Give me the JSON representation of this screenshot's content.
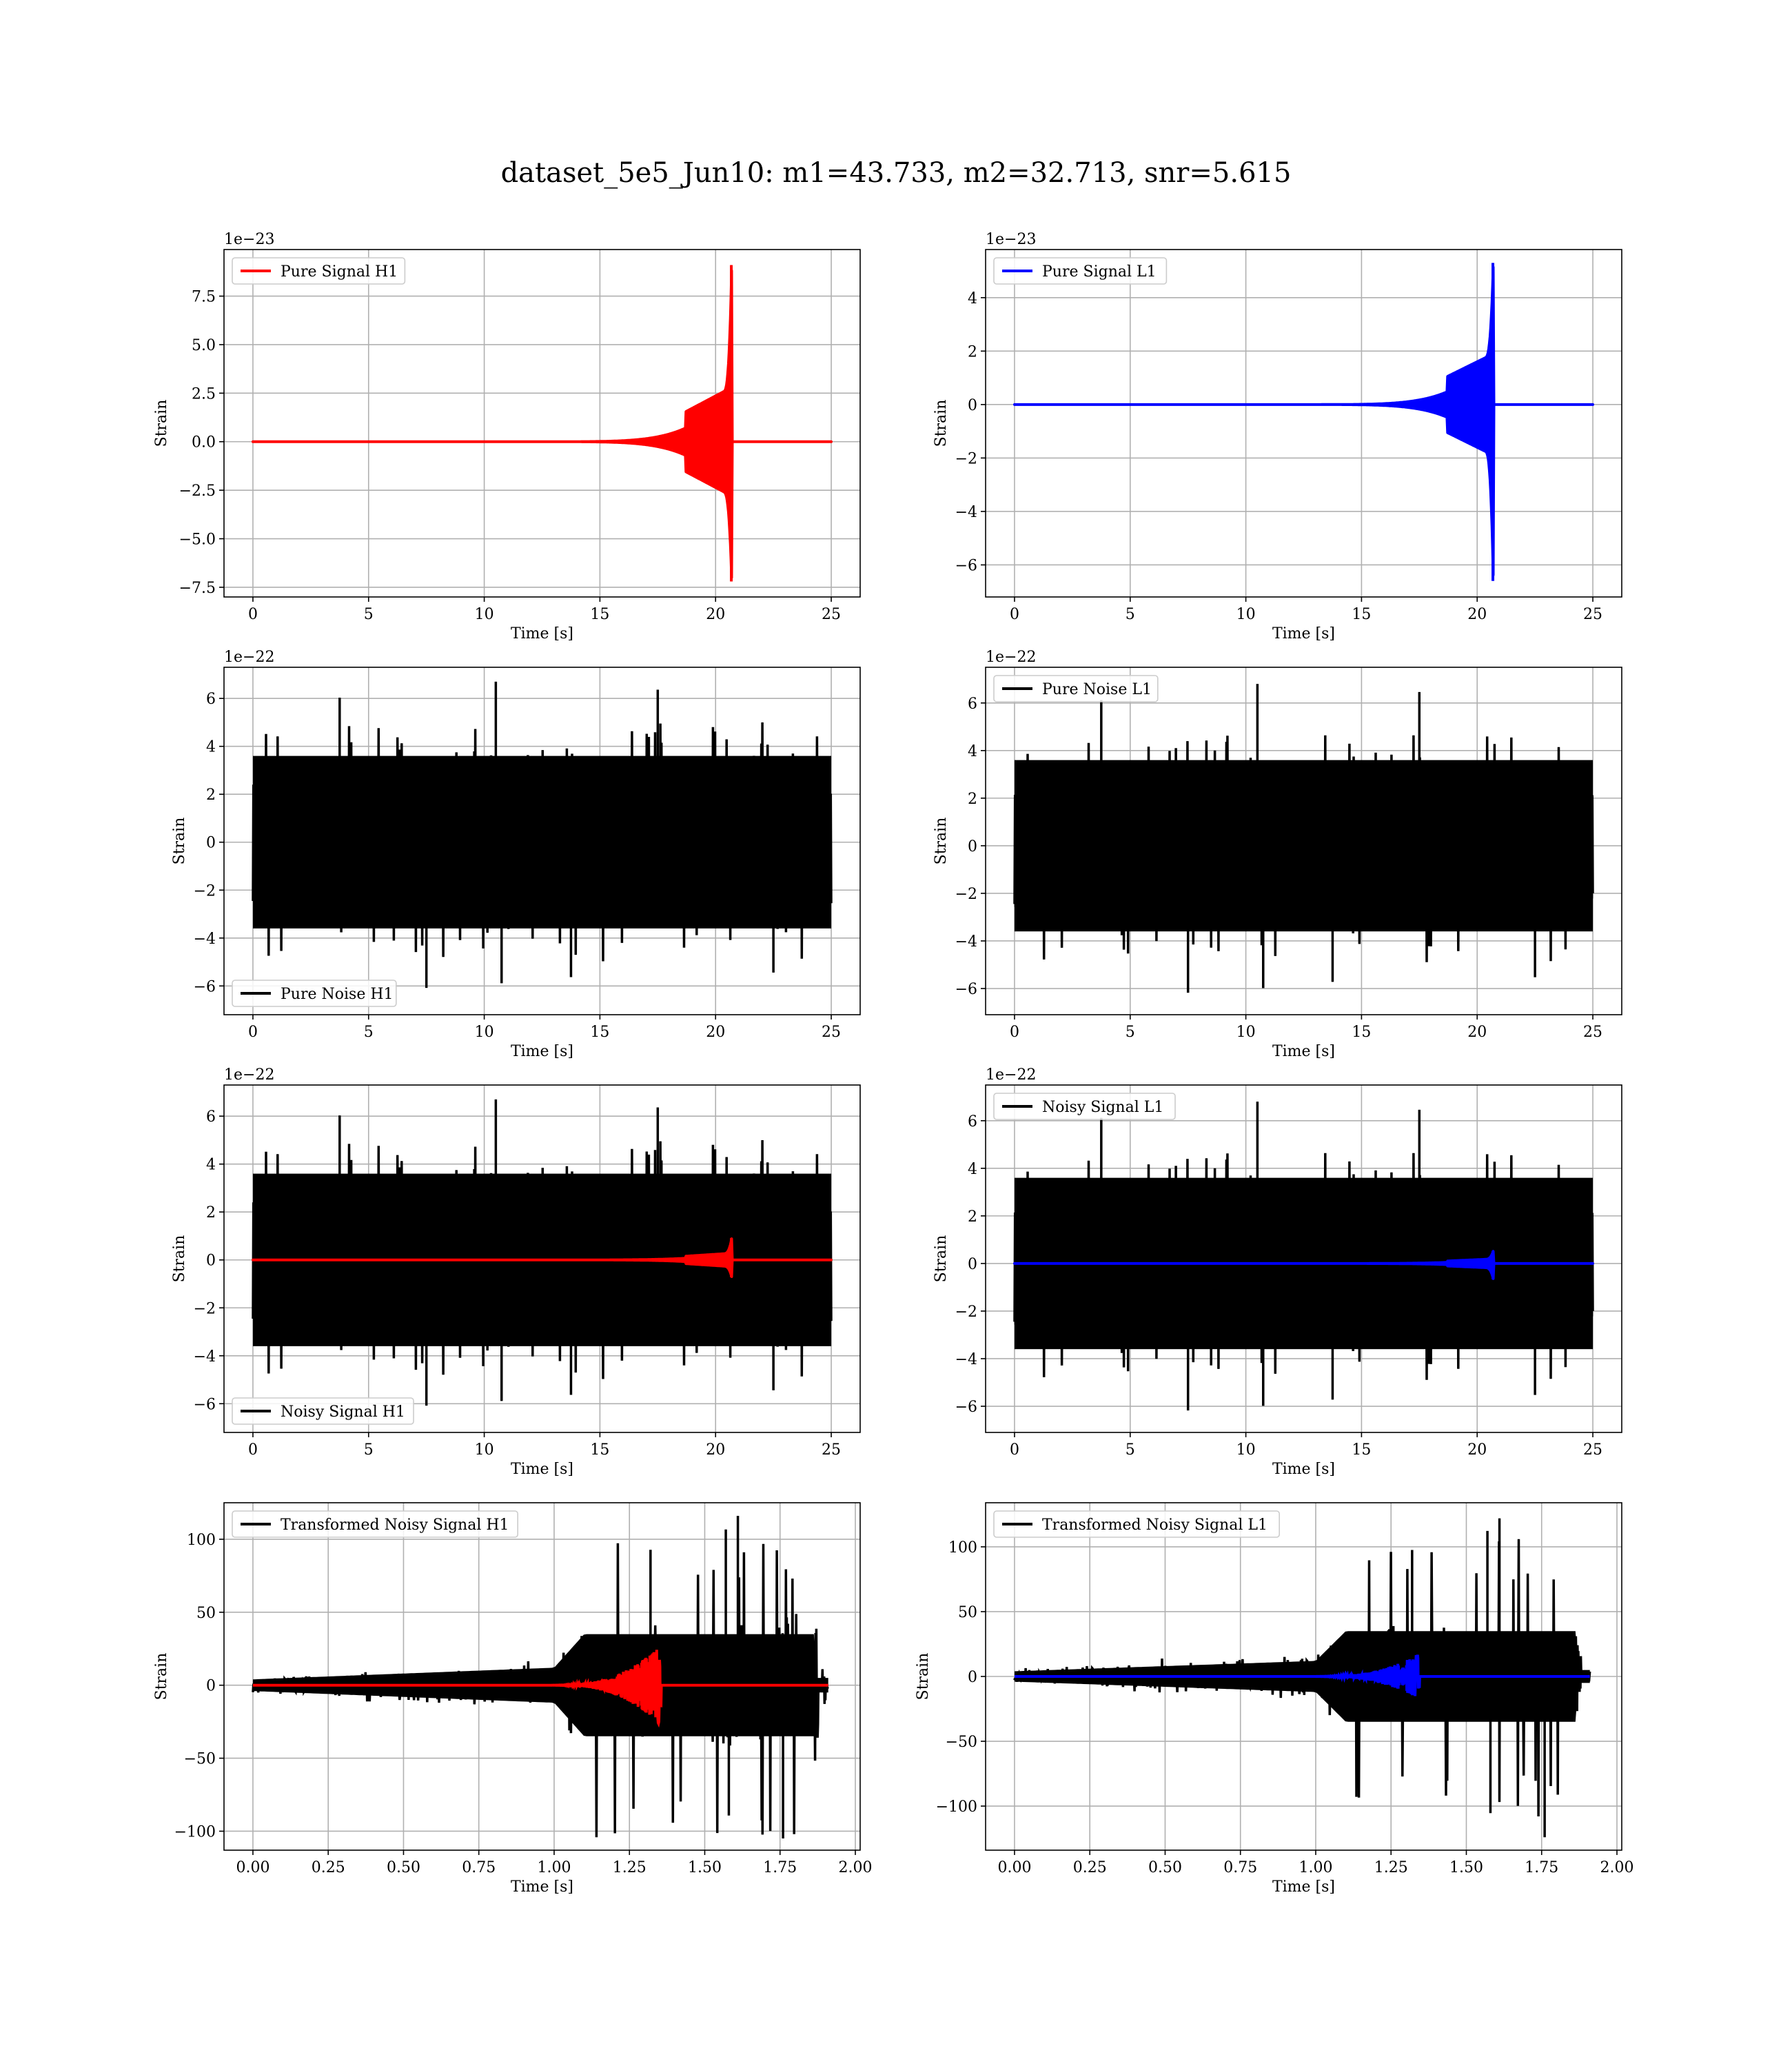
{
  "figure": {
    "title": "dataset_5e5_Jun10: m1=43.733, m2=32.713, snr=5.615"
  },
  "chart_data": [
    {
      "type": "line",
      "panel": "top-left",
      "offset_text": "1e−23",
      "xlabel": "Time [s]",
      "ylabel": "Strain",
      "xlim": [
        -1.25,
        26.25
      ],
      "ylim": [
        -8.0,
        9.9
      ],
      "xticks": [
        0,
        5,
        10,
        15,
        20,
        25
      ],
      "xtick_labels": [
        "0",
        "5",
        "10",
        "15",
        "20",
        "25"
      ],
      "yticks": [
        -7.5,
        -5.0,
        -2.5,
        0.0,
        2.5,
        5.0,
        7.5
      ],
      "ytick_labels": [
        "−7.5",
        "−5.0",
        "−2.5",
        "0.0",
        "2.5",
        "5.0",
        "7.5"
      ],
      "grid": true,
      "legend_position": "upper left",
      "series": [
        {
          "name": "Pure Signal H1",
          "color": "#ff0000",
          "kind": "chirp",
          "t_start": 0,
          "t_end": 25,
          "t_merge": 20.7,
          "onset": 11.0,
          "peak_pos": 9.1,
          "peak_neg": -7.2,
          "plateau": 2.8
        }
      ]
    },
    {
      "type": "line",
      "panel": "top-right",
      "offset_text": "1e−23",
      "xlabel": "Time [s]",
      "ylabel": "Strain",
      "xlim": [
        -1.25,
        26.25
      ],
      "ylim": [
        -7.2,
        5.8
      ],
      "xticks": [
        0,
        5,
        10,
        15,
        20,
        25
      ],
      "xtick_labels": [
        "0",
        "5",
        "10",
        "15",
        "20",
        "25"
      ],
      "yticks": [
        -6,
        -4,
        -2,
        0,
        2,
        4
      ],
      "ytick_labels": [
        "−6",
        "−4",
        "−2",
        "0",
        "2",
        "4"
      ],
      "grid": true,
      "legend_position": "upper left",
      "series": [
        {
          "name": "Pure Signal L1",
          "color": "#0000ff",
          "kind": "chirp",
          "t_start": 0,
          "t_end": 25,
          "t_merge": 20.7,
          "onset": 11.0,
          "peak_pos": 5.3,
          "peak_neg": -6.6,
          "plateau": 1.9
        }
      ]
    },
    {
      "type": "line",
      "panel": "row2-left",
      "offset_text": "1e−22",
      "xlabel": "Time [s]",
      "ylabel": "Strain",
      "xlim": [
        -1.25,
        26.25
      ],
      "ylim": [
        -7.2,
        7.3
      ],
      "xticks": [
        0,
        5,
        10,
        15,
        20,
        25
      ],
      "xtick_labels": [
        "0",
        "5",
        "10",
        "15",
        "20",
        "25"
      ],
      "yticks": [
        -6,
        -4,
        -2,
        0,
        2,
        4,
        6
      ],
      "ytick_labels": [
        "−6",
        "−4",
        "−2",
        "0",
        "2",
        "4",
        "6"
      ],
      "grid": true,
      "legend_position": "lower left",
      "series": [
        {
          "name": "Pure Noise H1",
          "color": "#000000",
          "kind": "noise",
          "t_start": 0,
          "t_end": 25,
          "band": 3.6,
          "spike_max": 6.7,
          "spike_min": -6.4,
          "seed": 11
        }
      ]
    },
    {
      "type": "line",
      "panel": "row2-right",
      "offset_text": "1e−22",
      "xlabel": "Time [s]",
      "ylabel": "Strain",
      "xlim": [
        -1.25,
        26.25
      ],
      "ylim": [
        -7.1,
        7.5
      ],
      "xticks": [
        0,
        5,
        10,
        15,
        20,
        25
      ],
      "xtick_labels": [
        "0",
        "5",
        "10",
        "15",
        "20",
        "25"
      ],
      "yticks": [
        -6,
        -4,
        -2,
        0,
        2,
        4,
        6
      ],
      "ytick_labels": [
        "−6",
        "−4",
        "−2",
        "0",
        "2",
        "4",
        "6"
      ],
      "grid": true,
      "legend_position": "upper left",
      "series": [
        {
          "name": "Pure Noise L1",
          "color": "#000000",
          "kind": "noise",
          "t_start": 0,
          "t_end": 25,
          "band": 3.6,
          "spike_max": 6.8,
          "spike_min": -6.5,
          "seed": 23
        }
      ]
    },
    {
      "type": "line",
      "panel": "row3-left",
      "offset_text": "1e−22",
      "xlabel": "Time [s]",
      "ylabel": "Strain",
      "xlim": [
        -1.25,
        26.25
      ],
      "ylim": [
        -7.2,
        7.3
      ],
      "xticks": [
        0,
        5,
        10,
        15,
        20,
        25
      ],
      "xtick_labels": [
        "0",
        "5",
        "10",
        "15",
        "20",
        "25"
      ],
      "yticks": [
        -6,
        -4,
        -2,
        0,
        2,
        4,
        6
      ],
      "ytick_labels": [
        "−6",
        "−4",
        "−2",
        "0",
        "2",
        "4",
        "6"
      ],
      "grid": true,
      "legend_position": "lower left",
      "series": [
        {
          "name": "Noisy Signal H1",
          "color": "#000000",
          "kind": "noise",
          "t_start": 0,
          "t_end": 25,
          "band": 3.6,
          "spike_max": 6.7,
          "spike_min": -6.4,
          "seed": 11
        },
        {
          "color": "#ff0000",
          "kind": "chirp",
          "t_start": 0,
          "t_end": 25,
          "t_merge": 20.7,
          "onset": 11.0,
          "peak_pos": 0.91,
          "peak_neg": -0.72,
          "plateau": 0.28
        }
      ]
    },
    {
      "type": "line",
      "panel": "row3-right",
      "offset_text": "1e−22",
      "xlabel": "Time [s]",
      "ylabel": "Strain",
      "xlim": [
        -1.25,
        26.25
      ],
      "ylim": [
        -7.1,
        7.5
      ],
      "xticks": [
        0,
        5,
        10,
        15,
        20,
        25
      ],
      "xtick_labels": [
        "0",
        "5",
        "10",
        "15",
        "20",
        "25"
      ],
      "yticks": [
        -6,
        -4,
        -2,
        0,
        2,
        4,
        6
      ],
      "ytick_labels": [
        "−6",
        "−4",
        "−2",
        "0",
        "2",
        "4",
        "6"
      ],
      "grid": true,
      "legend_position": "upper left",
      "series": [
        {
          "name": "Noisy Signal L1",
          "color": "#000000",
          "kind": "noise",
          "t_start": 0,
          "t_end": 25,
          "band": 3.6,
          "spike_max": 6.8,
          "spike_min": -6.5,
          "seed": 23
        },
        {
          "color": "#0000ff",
          "kind": "chirp",
          "t_start": 0,
          "t_end": 25,
          "t_merge": 20.7,
          "onset": 11.0,
          "peak_pos": 0.53,
          "peak_neg": -0.66,
          "plateau": 0.19
        }
      ]
    },
    {
      "type": "line",
      "panel": "bottom-left",
      "offset_text": "",
      "xlabel": "Time [s]",
      "ylabel": "Strain",
      "xlim": [
        -0.096,
        2.016
      ],
      "ylim": [
        -113,
        125
      ],
      "xticks": [
        0.0,
        0.25,
        0.5,
        0.75,
        1.0,
        1.25,
        1.5,
        1.75,
        2.0
      ],
      "xtick_labels": [
        "0.00",
        "0.25",
        "0.50",
        "0.75",
        "1.00",
        "1.25",
        "1.50",
        "1.75",
        "2.00"
      ],
      "yticks": [
        -100,
        -50,
        0,
        50,
        100
      ],
      "ytick_labels": [
        "−100",
        "−50",
        "0",
        "50",
        "100"
      ],
      "grid": true,
      "legend_position": "upper left",
      "series": [
        {
          "name": "Transformed Noisy Signal H1",
          "color": "#000000",
          "kind": "whitened",
          "t_start": 0,
          "t_end": 1.91,
          "seed": 37,
          "spike_max": 116,
          "spike_min": -105
        },
        {
          "color": "#ff0000",
          "kind": "whitened-chirp",
          "t_start": 0,
          "t_end": 1.91,
          "t_merge": 1.355,
          "onset": 0.95,
          "peak": 28
        }
      ]
    },
    {
      "type": "line",
      "panel": "bottom-right",
      "offset_text": "",
      "xlabel": "Time [s]",
      "ylabel": "Strain",
      "xlim": [
        -0.096,
        2.016
      ],
      "ylim": [
        -134,
        134
      ],
      "xticks": [
        0.0,
        0.25,
        0.5,
        0.75,
        1.0,
        1.25,
        1.5,
        1.75,
        2.0
      ],
      "xtick_labels": [
        "0.00",
        "0.25",
        "0.50",
        "0.75",
        "1.00",
        "1.25",
        "1.50",
        "1.75",
        "2.00"
      ],
      "yticks": [
        -100,
        -50,
        0,
        50,
        100
      ],
      "ytick_labels": [
        "−100",
        "−50",
        "0",
        "50",
        "100"
      ],
      "grid": true,
      "legend_position": "upper left",
      "series": [
        {
          "name": "Transformed Noisy Signal L1",
          "color": "#000000",
          "kind": "whitened",
          "t_start": 0,
          "t_end": 1.91,
          "seed": 53,
          "spike_max": 122,
          "spike_min": -124
        },
        {
          "color": "#0000ff",
          "kind": "whitened-chirp",
          "t_start": 0,
          "t_end": 1.91,
          "t_merge": 1.345,
          "onset": 0.95,
          "peak": 18
        }
      ]
    }
  ]
}
